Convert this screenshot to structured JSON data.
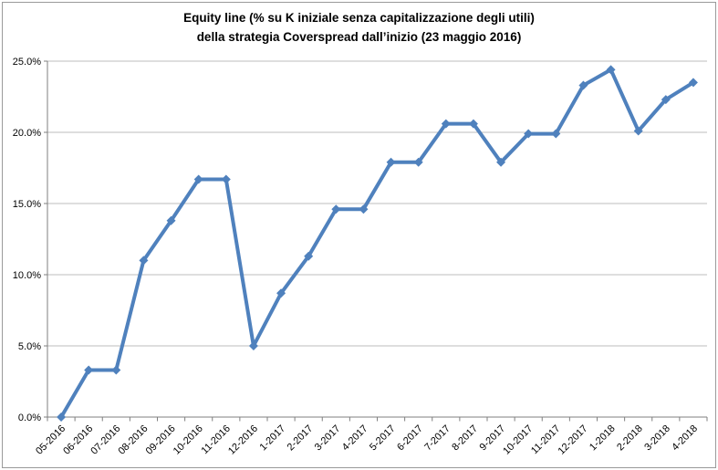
{
  "chart": {
    "title_line1": "Equity line (% su K iniziale senza capitalizzazione degli utili)",
    "title_line2": "della strategia Coverspread dall’inizio (23 maggio 2016)"
  },
  "chart_data": {
    "type": "line",
    "title": "Equity line (% su K iniziale senza capitalizzazione degli utili) della strategia Coverspread dall’inizio (23 maggio 2016)",
    "categories": [
      "05-2016",
      "06-2016",
      "07-2016",
      "08-2016",
      "09-2016",
      "10-2016",
      "11-2016",
      "12-2016",
      "1-2017",
      "2-2017",
      "3-2017",
      "4-2017",
      "5-2017",
      "6-2017",
      "7-2017",
      "8-2017",
      "9-2017",
      "10-2017",
      "11-2017",
      "12-2017",
      "1-2018",
      "2-2018",
      "3-2018",
      "4-2018"
    ],
    "values": [
      0.0,
      3.3,
      3.3,
      11.0,
      13.8,
      16.7,
      16.7,
      5.0,
      8.7,
      11.3,
      14.6,
      14.6,
      17.9,
      17.9,
      20.6,
      20.6,
      17.9,
      19.9,
      19.9,
      23.3,
      24.4,
      20.1,
      22.3,
      23.5
    ],
    "ylim": [
      0,
      25
    ],
    "ytick_step": 5,
    "ytick_labels": [
      "0.0%",
      "5.0%",
      "10.0%",
      "15.0%",
      "20.0%",
      "25.0%"
    ],
    "xlabel": "",
    "ylabel": "",
    "grid": true,
    "legend": "none",
    "line_color": "#4F81BD",
    "marker": "diamond",
    "gridline_color": "#BEBEBE",
    "axis_color": "#7F7F7F",
    "label_color": "#000000"
  }
}
